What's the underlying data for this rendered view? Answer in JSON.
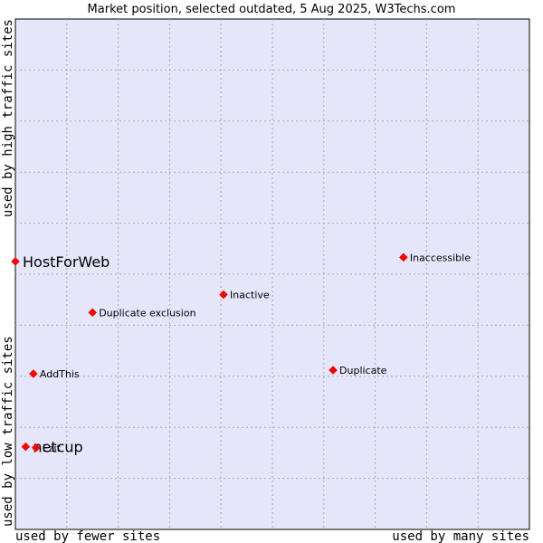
{
  "chart_data": {
    "type": "scatter",
    "title": "Market position, selected outdated, 5 Aug 2025, W3Techs.com",
    "xlabel_left": "used by fewer sites",
    "xlabel_right": "used by many sites",
    "ylabel_bottom": "used by low traffic sites",
    "ylabel_top": "used by high traffic sites",
    "xlim": [
      0,
      100
    ],
    "ylim": [
      0,
      100
    ],
    "grid": true,
    "colors": {
      "plot_bg": "#e6e6fa",
      "grid": "#aaaaaa",
      "marker": "#ff0000",
      "marker_edge": "#cc0000"
    },
    "points": [
      {
        "label": "HostForWeb",
        "x": 0.0,
        "y": 52.5,
        "highlight": true
      },
      {
        "label": "Inaccessible",
        "x": 75.5,
        "y": 53.3,
        "highlight": false
      },
      {
        "label": "Inactive",
        "x": 40.5,
        "y": 46.0,
        "highlight": false
      },
      {
        "label": "Duplicate exclusion",
        "x": 15.0,
        "y": 42.5,
        "highlight": false
      },
      {
        "label": "AddThis",
        "x": 3.5,
        "y": 30.5,
        "highlight": false
      },
      {
        "label": "Duplicate",
        "x": 61.8,
        "y": 31.2,
        "highlight": false
      },
      {
        "label": "netcup",
        "x": 2.0,
        "y": 16.2,
        "highlight": true
      },
      {
        "label": "Ezit",
        "x": 4.0,
        "y": 16.0,
        "highlight": false
      }
    ]
  }
}
